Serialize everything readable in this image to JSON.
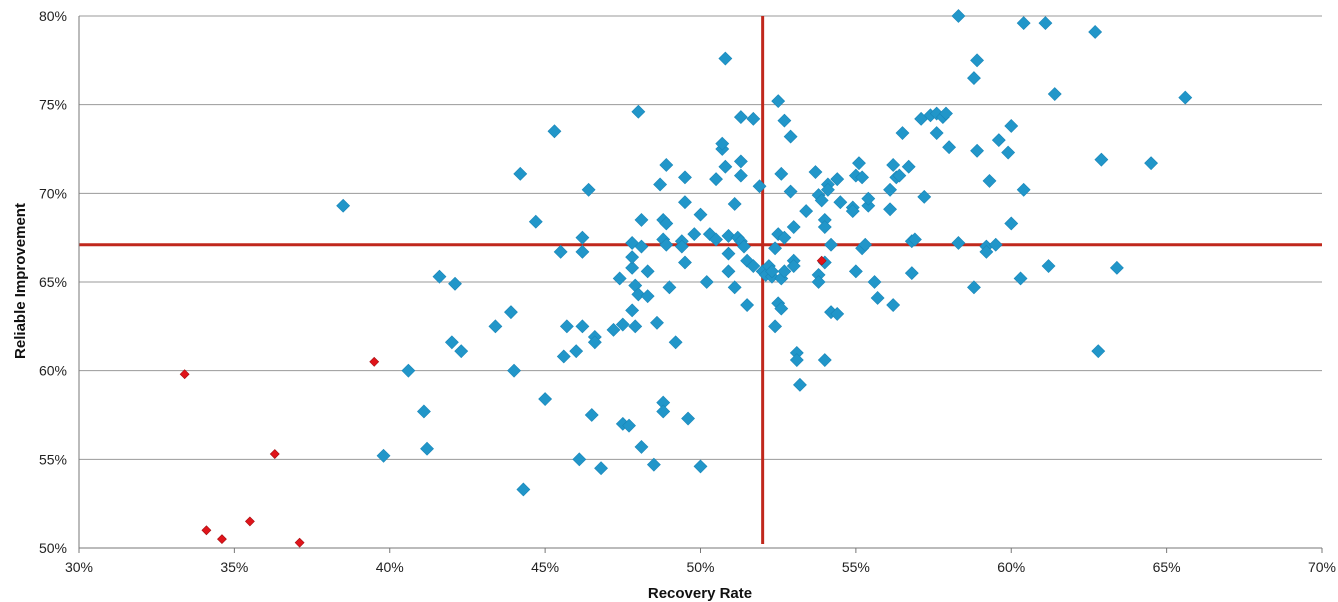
{
  "chart_data": {
    "type": "scatter",
    "title": "",
    "xlabel": "Recovery Rate",
    "ylabel": "Reliable Improvement",
    "xlim": [
      30,
      70
    ],
    "ylim": [
      50,
      80
    ],
    "xticks": [
      30,
      35,
      40,
      45,
      50,
      55,
      60,
      65,
      70
    ],
    "yticks": [
      50,
      55,
      60,
      65,
      70,
      75,
      80
    ],
    "xtick_labels": [
      "30%",
      "35%",
      "40%",
      "45%",
      "50%",
      "55%",
      "60%",
      "65%",
      "70%"
    ],
    "ytick_labels": [
      "50%",
      "55%",
      "60%",
      "65%",
      "70%",
      "75%",
      "80%"
    ],
    "grid": "horizontal",
    "legend": "none",
    "reference_lines": {
      "x": 52.0,
      "y": 67.1,
      "color": "#c0281c"
    },
    "series": [
      {
        "color": "#2196c9",
        "marker": "diamond",
        "points": [
          [
            38.5,
            69.3
          ],
          [
            39.8,
            55.2
          ],
          [
            40.6,
            60.0
          ],
          [
            41.1,
            57.7
          ],
          [
            41.2,
            55.6
          ],
          [
            41.6,
            65.3
          ],
          [
            42.0,
            61.6
          ],
          [
            42.1,
            64.9
          ],
          [
            42.3,
            61.1
          ],
          [
            43.4,
            62.5
          ],
          [
            43.9,
            63.3
          ],
          [
            44.0,
            60.0
          ],
          [
            44.2,
            71.1
          ],
          [
            44.3,
            53.3
          ],
          [
            44.7,
            68.4
          ],
          [
            45.0,
            58.4
          ],
          [
            45.3,
            73.5
          ],
          [
            45.5,
            66.7
          ],
          [
            45.6,
            60.8
          ],
          [
            45.7,
            62.5
          ],
          [
            46.0,
            61.1
          ],
          [
            46.1,
            55.0
          ],
          [
            46.2,
            62.5
          ],
          [
            46.2,
            67.5
          ],
          [
            46.2,
            66.7
          ],
          [
            46.4,
            70.2
          ],
          [
            46.5,
            57.5
          ],
          [
            46.6,
            61.9
          ],
          [
            46.6,
            61.6
          ],
          [
            46.8,
            54.5
          ],
          [
            47.2,
            62.3
          ],
          [
            47.4,
            65.2
          ],
          [
            47.5,
            62.6
          ],
          [
            47.5,
            57.0
          ],
          [
            47.7,
            56.9
          ],
          [
            47.8,
            63.4
          ],
          [
            47.8,
            65.8
          ],
          [
            47.8,
            66.4
          ],
          [
            47.8,
            67.2
          ],
          [
            47.9,
            64.8
          ],
          [
            47.9,
            62.5
          ],
          [
            48.0,
            74.6
          ],
          [
            48.0,
            64.3
          ],
          [
            48.1,
            55.7
          ],
          [
            48.1,
            68.5
          ],
          [
            48.1,
            67.0
          ],
          [
            48.3,
            64.2
          ],
          [
            48.3,
            65.6
          ],
          [
            48.5,
            54.7
          ],
          [
            48.6,
            62.7
          ],
          [
            48.7,
            70.5
          ],
          [
            48.8,
            67.4
          ],
          [
            48.8,
            68.5
          ],
          [
            48.8,
            58.2
          ],
          [
            48.8,
            57.7
          ],
          [
            48.9,
            71.6
          ],
          [
            48.9,
            68.3
          ],
          [
            48.9,
            67.1
          ],
          [
            49.0,
            64.7
          ],
          [
            49.2,
            61.6
          ],
          [
            49.4,
            67.3
          ],
          [
            49.4,
            67.0
          ],
          [
            49.5,
            66.1
          ],
          [
            49.5,
            70.9
          ],
          [
            49.5,
            69.5
          ],
          [
            49.6,
            57.3
          ],
          [
            49.8,
            67.7
          ],
          [
            50.0,
            54.6
          ],
          [
            50.0,
            68.8
          ],
          [
            50.2,
            65.0
          ],
          [
            50.3,
            67.7
          ],
          [
            50.5,
            67.4
          ],
          [
            50.5,
            70.8
          ],
          [
            50.7,
            72.5
          ],
          [
            50.7,
            72.8
          ],
          [
            50.8,
            77.6
          ],
          [
            50.8,
            71.5
          ],
          [
            50.9,
            66.6
          ],
          [
            50.9,
            67.6
          ],
          [
            50.9,
            65.6
          ],
          [
            51.1,
            69.4
          ],
          [
            51.1,
            64.7
          ],
          [
            51.2,
            67.5
          ],
          [
            51.3,
            67.3
          ],
          [
            51.3,
            71.8
          ],
          [
            51.3,
            71.0
          ],
          [
            51.3,
            74.3
          ],
          [
            51.4,
            67.0
          ],
          [
            51.5,
            66.2
          ],
          [
            51.5,
            63.7
          ],
          [
            51.7,
            65.9
          ],
          [
            51.7,
            74.2
          ],
          [
            51.9,
            70.4
          ],
          [
            52.0,
            65.6
          ],
          [
            52.1,
            65.4
          ],
          [
            52.2,
            65.9
          ],
          [
            52.3,
            65.3
          ],
          [
            52.3,
            65.6
          ],
          [
            52.4,
            66.9
          ],
          [
            52.4,
            62.5
          ],
          [
            52.5,
            63.8
          ],
          [
            52.5,
            75.2
          ],
          [
            52.5,
            67.7
          ],
          [
            52.6,
            65.2
          ],
          [
            52.6,
            63.5
          ],
          [
            52.6,
            71.1
          ],
          [
            52.7,
            74.1
          ],
          [
            52.7,
            65.6
          ],
          [
            52.7,
            67.5
          ],
          [
            52.9,
            73.2
          ],
          [
            52.9,
            70.1
          ],
          [
            53.0,
            66.2
          ],
          [
            53.0,
            65.9
          ],
          [
            53.0,
            68.1
          ],
          [
            53.1,
            61.0
          ],
          [
            53.1,
            60.6
          ],
          [
            53.2,
            59.2
          ],
          [
            53.4,
            69.0
          ],
          [
            53.7,
            71.2
          ],
          [
            53.8,
            69.9
          ],
          [
            53.8,
            65.4
          ],
          [
            53.8,
            65.0
          ],
          [
            53.9,
            69.6
          ],
          [
            54.0,
            66.1
          ],
          [
            54.0,
            68.5
          ],
          [
            54.0,
            68.1
          ],
          [
            54.0,
            60.6
          ],
          [
            54.1,
            70.5
          ],
          [
            54.1,
            70.2
          ],
          [
            54.2,
            63.3
          ],
          [
            54.2,
            67.1
          ],
          [
            54.4,
            63.2
          ],
          [
            54.4,
            70.8
          ],
          [
            54.5,
            69.5
          ],
          [
            54.9,
            69.2
          ],
          [
            54.9,
            69.0
          ],
          [
            55.0,
            71.0
          ],
          [
            55.0,
            65.6
          ],
          [
            55.1,
            71.7
          ],
          [
            55.2,
            70.9
          ],
          [
            55.2,
            66.9
          ],
          [
            55.3,
            67.1
          ],
          [
            55.4,
            69.3
          ],
          [
            55.4,
            69.7
          ],
          [
            55.6,
            65.0
          ],
          [
            55.7,
            64.1
          ],
          [
            56.1,
            69.1
          ],
          [
            56.1,
            70.2
          ],
          [
            56.2,
            63.7
          ],
          [
            56.2,
            71.6
          ],
          [
            56.3,
            70.9
          ],
          [
            56.4,
            71.0
          ],
          [
            56.5,
            73.4
          ],
          [
            56.7,
            71.5
          ],
          [
            56.8,
            67.3
          ],
          [
            56.8,
            65.5
          ],
          [
            56.9,
            67.4
          ],
          [
            57.1,
            74.2
          ],
          [
            57.2,
            69.8
          ],
          [
            57.4,
            74.4
          ],
          [
            57.6,
            74.5
          ],
          [
            57.6,
            73.4
          ],
          [
            57.8,
            74.3
          ],
          [
            57.9,
            74.5
          ],
          [
            58.0,
            72.6
          ],
          [
            58.3,
            80.0
          ],
          [
            58.3,
            67.2
          ],
          [
            58.8,
            76.5
          ],
          [
            58.8,
            64.7
          ],
          [
            58.9,
            72.4
          ],
          [
            58.9,
            77.5
          ],
          [
            59.2,
            67.0
          ],
          [
            59.2,
            66.7
          ],
          [
            59.3,
            70.7
          ],
          [
            59.5,
            67.1
          ],
          [
            59.6,
            73.0
          ],
          [
            59.9,
            72.3
          ],
          [
            60.0,
            73.8
          ],
          [
            60.0,
            68.3
          ],
          [
            60.3,
            65.2
          ],
          [
            60.4,
            79.6
          ],
          [
            60.4,
            70.2
          ],
          [
            61.1,
            79.6
          ],
          [
            61.2,
            65.9
          ],
          [
            61.4,
            75.6
          ],
          [
            62.7,
            79.1
          ],
          [
            62.8,
            61.1
          ],
          [
            62.9,
            71.9
          ],
          [
            63.4,
            65.8
          ],
          [
            64.5,
            71.7
          ],
          [
            65.6,
            75.4
          ]
        ]
      },
      {
        "color": "#e0141a",
        "marker": "diamond",
        "points": [
          [
            33.4,
            59.8
          ],
          [
            34.1,
            51.0
          ],
          [
            34.6,
            50.5
          ],
          [
            35.5,
            51.5
          ],
          [
            36.3,
            55.3
          ],
          [
            37.1,
            50.3
          ],
          [
            39.5,
            60.5
          ],
          [
            53.9,
            66.2
          ]
        ]
      }
    ]
  }
}
